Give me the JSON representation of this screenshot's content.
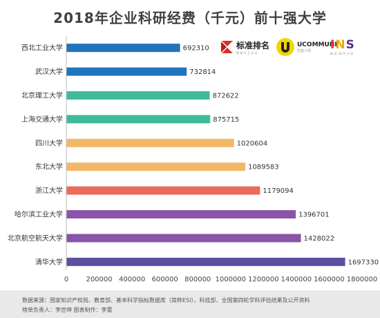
{
  "chart_data": {
    "type": "bar",
    "orientation": "horizontal",
    "title": "2018年企业科研经费（千元）前十强大学",
    "categories": [
      "西北工业大学",
      "武汉大学",
      "北京理工大学",
      "上海交通大学",
      "四川大学",
      "东北大学",
      "浙江大学",
      "哈尔滨工业大学",
      "北京航空航天大学",
      "清华大学"
    ],
    "values": [
      692310,
      732814,
      872622,
      875715,
      1020604,
      1089583,
      1179094,
      1396701,
      1428022,
      1697330
    ],
    "colors": [
      "#1f74bd",
      "#1f74bd",
      "#3dbb9b",
      "#3dbb9b",
      "#f2b866",
      "#f2b866",
      "#ec6a5a",
      "#8a55a9",
      "#8a55a9",
      "#5b4fa0"
    ],
    "xlim": [
      0,
      1800000
    ],
    "xticks": [
      "0",
      "200000",
      "400000",
      "600000",
      "800000",
      "1000000",
      "1200000",
      "1400000",
      "1600000",
      "1800000"
    ],
    "grid": false,
    "legend": "none"
  },
  "logos": {
    "logo1": {
      "name": "标准排名",
      "sub": "数 据 中 立 论 证"
    },
    "logo2": {
      "name": "UCOMMUNE",
      "sub": "优客工场"
    },
    "logo3": {
      "name": "INS",
      "sub": "新 浪 | 新 东 方 研"
    }
  },
  "footer": {
    "line1": "数据来源：国家知识产权局、教育部、基本科学指标数据库（简称ESI）、科技部、全国第四轮学科评估结果及公开资料",
    "line2": "榜单负责人：李世坤    图表制作：李蕾"
  },
  "icons": [
    "standard-ranking-logo-icon",
    "ucommune-logo-icon",
    "ins-logo-icon"
  ]
}
